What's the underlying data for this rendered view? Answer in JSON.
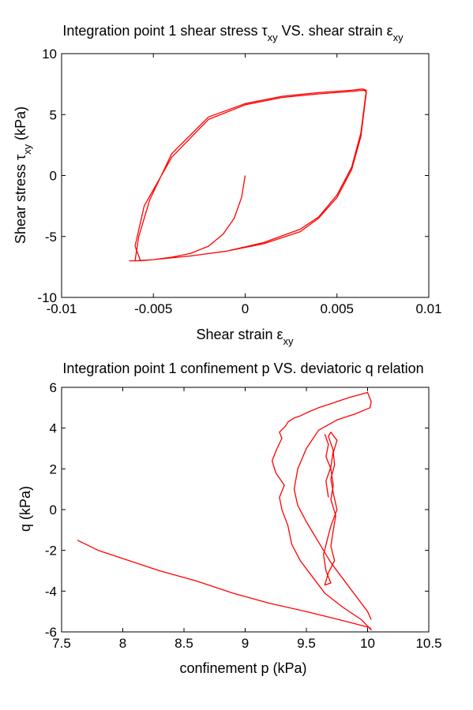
{
  "chart_data": [
    {
      "type": "line",
      "title": {
        "main": "Integration point 1 shear stress ",
        "sym1": "τ",
        "sub1": "xy",
        "mid": " VS. shear strain ",
        "sym2": "ε",
        "sub2": "xy"
      },
      "xlabel": {
        "main": "Shear strain ",
        "sym": "ε",
        "sub": "xy"
      },
      "ylabel": {
        "main": "Shear stress ",
        "sym": "τ",
        "sub": "xy",
        "unit": " (kPa)"
      },
      "xlim": [
        -0.01,
        0.01
      ],
      "ylim": [
        -10,
        10
      ],
      "xticks": [
        -0.01,
        -0.005,
        0,
        0.005,
        0.01
      ],
      "xtick_labels": [
        "-0.01",
        "-0.005",
        "0",
        "0.005",
        "0.01"
      ],
      "yticks": [
        10,
        5,
        0,
        -5,
        -10
      ],
      "ytick_labels": [
        "10",
        "5",
        "0",
        "-5",
        "-10"
      ],
      "grid": false,
      "color": "#ff0000",
      "series": [
        {
          "x": [
            0,
            -0.0002,
            -0.0006,
            -0.0012,
            -0.002,
            -0.003,
            -0.004,
            -0.005,
            -0.006,
            -0.0063,
            -0.0059,
            -0.005,
            -0.003,
            -0.001,
            0.001,
            0.003,
            0.004,
            0.005,
            0.0058,
            0.0063,
            0.0066,
            0.0065,
            0.0058,
            0.004,
            0.002,
            0,
            -0.002,
            -0.004,
            -0.0055,
            -0.006,
            -0.0057,
            -0.005,
            -0.003,
            -0.001,
            0.001,
            0.003,
            0.004,
            0.005,
            0.0058,
            0.0063,
            0.0066,
            0.0064,
            0.0058,
            0.004,
            0.002,
            0,
            -0.002,
            -0.004,
            -0.0052,
            -0.0058,
            -0.006
          ],
          "y": [
            0,
            -1.8,
            -3.5,
            -4.8,
            -5.8,
            -6.4,
            -6.7,
            -6.9,
            -7.0,
            -7.0,
            -7.0,
            -6.9,
            -6.6,
            -6.2,
            -5.6,
            -4.6,
            -3.5,
            -1.8,
            0.5,
            3.2,
            6.8,
            7.0,
            6.9,
            6.7,
            6.4,
            5.8,
            4.6,
            1.5,
            -2.5,
            -5.8,
            -7.0,
            -6.9,
            -6.6,
            -6.2,
            -5.5,
            -4.4,
            -3.4,
            -1.6,
            0.7,
            3.5,
            7.0,
            7.1,
            7.0,
            6.8,
            6.5,
            5.9,
            4.8,
            1.8,
            -2.0,
            -5.0,
            -7.0
          ]
        }
      ]
    },
    {
      "type": "line",
      "title": "Integration point 1 confinement p VS. deviatoric q relation",
      "xlabel": "confinement p (kPa)",
      "ylabel": "q (kPa)",
      "xlim": [
        7.5,
        10.5
      ],
      "ylim": [
        -6,
        6
      ],
      "xticks": [
        7.5,
        8,
        8.5,
        9,
        9.5,
        10,
        10.5
      ],
      "xtick_labels": [
        "7.5",
        "8",
        "8.5",
        "9",
        "9.5",
        "10",
        "10.5"
      ],
      "yticks": [
        6,
        4,
        2,
        0,
        -2,
        -4,
        -6
      ],
      "ytick_labels": [
        "6",
        "4",
        "2",
        "0",
        "-2",
        "-4",
        "-6"
      ],
      "grid": false,
      "color": "#ff0000",
      "series": [
        {
          "x": [
            7.63,
            7.8,
            8.0,
            8.3,
            8.6,
            8.9,
            9.2,
            9.5,
            9.7,
            9.9,
            10.02,
            10.03,
            9.95,
            9.8,
            9.65,
            9.55,
            9.45,
            9.38,
            9.35,
            9.3,
            9.28,
            9.32,
            9.25,
            9.22,
            9.26,
            9.3,
            9.28,
            9.33,
            9.35,
            9.4,
            9.45,
            9.52,
            9.6,
            9.7,
            9.85,
            10.0,
            10.03,
            10.02,
            9.9,
            9.75,
            9.6,
            9.5,
            9.43,
            9.4,
            9.43,
            9.5,
            9.6,
            9.7,
            9.85,
            10.0,
            10.03
          ],
          "y": [
            -1.5,
            -2.0,
            -2.4,
            -3.0,
            -3.5,
            -4.1,
            -4.6,
            -5.0,
            -5.3,
            -5.6,
            -5.8,
            -5.9,
            -5.4,
            -4.8,
            -4.1,
            -3.3,
            -2.5,
            -1.7,
            -0.8,
            0.0,
            0.6,
            1.2,
            1.8,
            2.4,
            3.0,
            3.5,
            3.8,
            4.1,
            4.3,
            4.5,
            4.6,
            4.8,
            5.0,
            5.2,
            5.5,
            5.75,
            5.3,
            5.0,
            4.7,
            4.4,
            3.9,
            3.0,
            2.0,
            1.0,
            0.2,
            -0.6,
            -1.6,
            -2.6,
            -3.8,
            -5.0,
            -5.4
          ]
        },
        {
          "x": [
            9.65,
            9.68,
            9.66,
            9.7,
            9.72,
            9.7,
            9.74,
            9.72,
            9.7,
            9.73,
            9.68,
            9.65,
            9.7,
            9.66,
            9.64,
            9.67,
            9.7,
            9.75,
            9.72,
            9.7,
            9.73,
            9.72,
            9.75,
            9.7,
            9.68,
            9.72,
            9.7,
            9.66,
            9.68
          ],
          "y": [
            3.7,
            3.2,
            2.6,
            2.0,
            1.2,
            0.5,
            -0.3,
            -1.0,
            -1.8,
            -2.5,
            -3.1,
            -3.7,
            -3.6,
            -3.0,
            -2.2,
            -1.5,
            -0.8,
            0.0,
            0.8,
            1.5,
            2.2,
            2.8,
            3.4,
            3.8,
            3.6,
            2.9,
            2.1,
            1.4,
            0.6
          ]
        }
      ]
    }
  ]
}
